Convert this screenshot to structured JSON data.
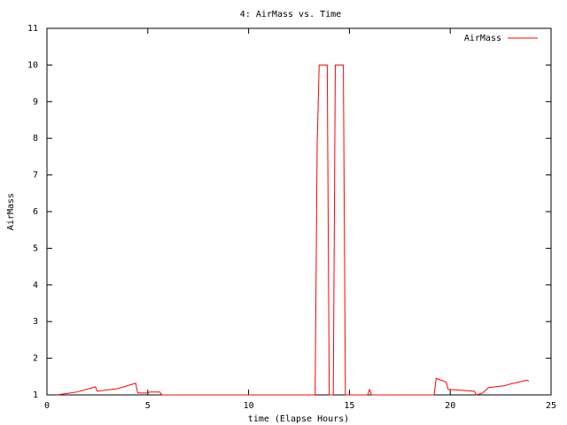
{
  "chart_data": {
    "type": "line",
    "title": "4: AirMass vs. Time",
    "x_label": "time (Elapse Hours)",
    "y_label": "AirMass",
    "x": [
      0.5,
      1.5,
      2.4,
      2.5,
      3.5,
      4.4,
      4.5,
      5.0,
      5.1,
      5.6,
      5.7,
      13.3,
      13.4,
      13.5,
      13.9,
      14.0,
      14.2,
      14.3,
      14.7,
      14.8,
      15.9,
      16.0,
      16.1,
      19.2,
      19.3,
      19.8,
      19.9,
      21.2,
      21.3,
      21.6,
      21.9,
      22.7,
      23.0,
      23.8,
      23.9
    ],
    "series": [
      {
        "name": "AirMass",
        "color": "#ff0000",
        "values": [
          1.0,
          1.08,
          1.22,
          1.1,
          1.17,
          1.32,
          1.05,
          1.05,
          1.08,
          1.08,
          1.0,
          1.0,
          7.8,
          10,
          10,
          1,
          1,
          10,
          10,
          1,
          1,
          1.15,
          1,
          1,
          1.45,
          1.35,
          1.15,
          1.1,
          1.0,
          1.05,
          1.2,
          1.25,
          1.3,
          1.4,
          1.38
        ]
      }
    ],
    "xlim": [
      0,
      25
    ],
    "xticks": [
      0,
      5,
      10,
      15,
      20,
      25
    ],
    "ylim": [
      1,
      11
    ],
    "yticks": [
      1,
      2,
      3,
      4,
      5,
      6,
      7,
      8,
      9,
      10,
      11
    ],
    "grid": false,
    "legend": "top-right"
  }
}
